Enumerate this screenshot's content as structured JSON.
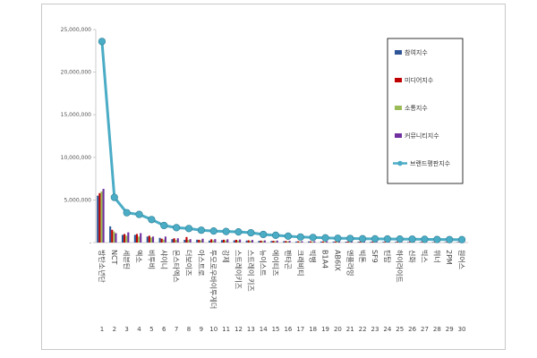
{
  "chart_data": {
    "type": "bar",
    "categories": [
      "방탄소년단",
      "NCT",
      "세븐틴",
      "엑소",
      "비투비",
      "샤이니",
      "몬스타엑스",
      "더보이즈",
      "아스트로",
      "투모로우바이투게더",
      "강제",
      "스트레이키즈",
      "스트레이 키즈",
      "뉴이스트",
      "에이티즈",
      "펜타곤",
      "크래비티",
      "빅뱅",
      "B1A4",
      "AB6IX",
      "엔플라잉",
      "빅톤",
      "SF9",
      "틴탑",
      "하이라이트",
      "신화",
      "빅스",
      "위너",
      "2PM",
      "원어스"
    ],
    "index_labels": [
      "1",
      "2",
      "3",
      "4",
      "5",
      "6",
      "7",
      "8",
      "9",
      "10",
      "11",
      "12",
      "13",
      "14",
      "15",
      "16",
      "17",
      "18",
      "19",
      "20",
      "21",
      "22",
      "23",
      "24",
      "25",
      "26",
      "27",
      "28",
      "29",
      "30"
    ],
    "series": [
      {
        "name": "참여지수",
        "color": "#2f5597",
        "values": [
          5500000,
          1900000,
          900000,
          900000,
          700000,
          550000,
          400000,
          320000,
          330000,
          230000,
          280000,
          260000,
          230000,
          200000,
          180000,
          160000,
          120000,
          130000,
          120000,
          110000,
          100000,
          90000,
          90000,
          80000,
          80000,
          70000,
          70000,
          60000,
          60000,
          60000
        ]
      },
      {
        "name": "미디어지수",
        "color": "#c00000",
        "values": [
          5800000,
          1500000,
          1000000,
          1000000,
          800000,
          450000,
          500000,
          650000,
          320000,
          380000,
          330000,
          320000,
          260000,
          220000,
          200000,
          180000,
          150000,
          140000,
          130000,
          120000,
          110000,
          100000,
          100000,
          90000,
          90000,
          80000,
          80000,
          70000,
          70000,
          60000
        ]
      },
      {
        "name": "소통지수",
        "color": "#9bbb59",
        "values": [
          6000000,
          1300000,
          800000,
          700000,
          600000,
          350000,
          300000,
          300000,
          260000,
          260000,
          240000,
          230000,
          200000,
          170000,
          150000,
          140000,
          110000,
          100000,
          90000,
          90000,
          80000,
          70000,
          70000,
          60000,
          60000,
          50000,
          50000,
          50000,
          40000,
          40000
        ]
      },
      {
        "name": "커뮤니티지수",
        "color": "#7030a0",
        "values": [
          6300000,
          1100000,
          1200000,
          1100000,
          700000,
          700000,
          500000,
          400000,
          450000,
          400000,
          380000,
          350000,
          300000,
          250000,
          230000,
          200000,
          160000,
          150000,
          140000,
          130000,
          120000,
          110000,
          100000,
          90000,
          90000,
          80000,
          80000,
          70000,
          70000,
          60000
        ]
      }
    ],
    "line": {
      "name": "브랜드평판지수",
      "color": "#4bacc6",
      "values": [
        23600000,
        5300000,
        3500000,
        3300000,
        2700000,
        2000000,
        1750000,
        1650000,
        1450000,
        1350000,
        1300000,
        1250000,
        1150000,
        950000,
        850000,
        750000,
        650000,
        600000,
        550000,
        500000,
        480000,
        450000,
        430000,
        420000,
        410000,
        400000,
        380000,
        360000,
        350000,
        340000
      ]
    },
    "y_ticks": [
      "-",
      "5,000,000",
      "10,000,000",
      "15,000,000",
      "20,000,000",
      "25,000,000"
    ],
    "ylim": [
      0,
      25000000
    ],
    "legend": "right"
  }
}
